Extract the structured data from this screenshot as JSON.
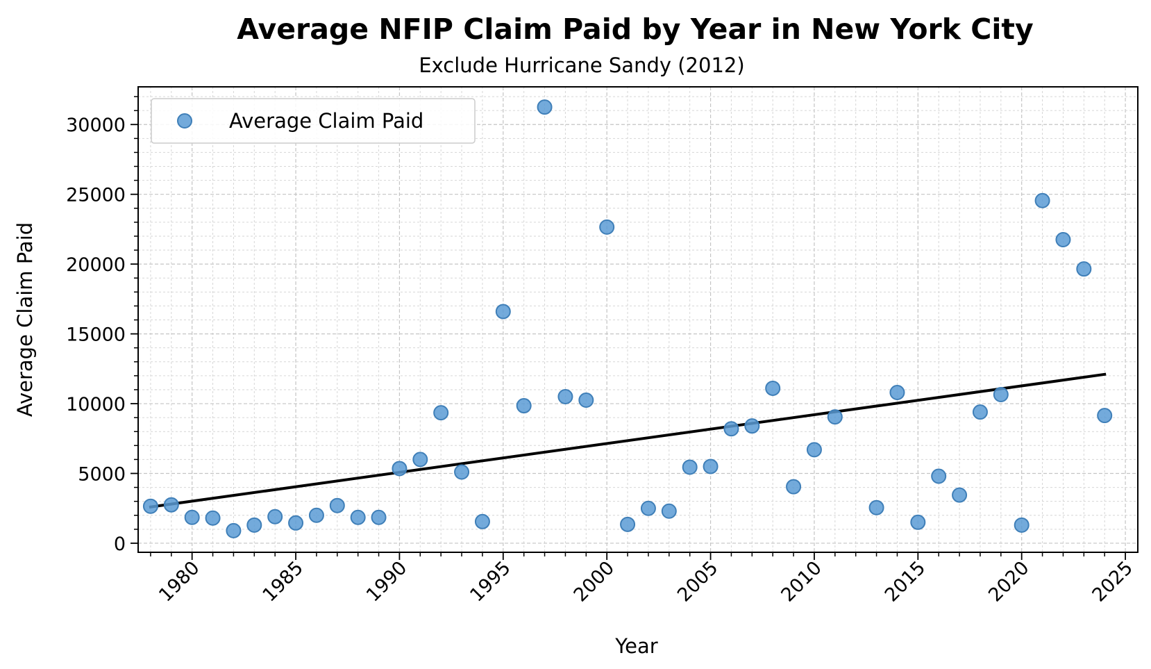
{
  "chart_data": {
    "type": "scatter",
    "title": "Average NFIP Claim Paid by Year in New York City",
    "subtitle": "Exclude Hurricane Sandy (2012)",
    "xlabel": "Year",
    "ylabel": "Average Claim Paid",
    "xlim": [
      1977.4,
      2025.6
    ],
    "ylim": [
      -650,
      32700
    ],
    "x_ticks": [
      1980,
      1985,
      1990,
      1995,
      2000,
      2005,
      2010,
      2015,
      2020,
      2025
    ],
    "x_tick_labels": [
      "1980",
      "1985",
      "1990",
      "1995",
      "2000",
      "2005",
      "2010",
      "2015",
      "2020",
      "2025"
    ],
    "y_ticks": [
      0,
      5000,
      10000,
      15000,
      20000,
      25000,
      30000
    ],
    "y_tick_labels": [
      "0",
      "5000",
      "10000",
      "15000",
      "20000",
      "25000",
      "30000"
    ],
    "grid": true,
    "legend_position": "top-left",
    "series": [
      {
        "name": "Average Claim Paid",
        "type": "scatter",
        "color": "#5b9bd5",
        "x": [
          1978,
          1979,
          1980,
          1981,
          1982,
          1983,
          1984,
          1985,
          1986,
          1987,
          1988,
          1989,
          1990,
          1991,
          1992,
          1993,
          1994,
          1995,
          1996,
          1997,
          1998,
          1999,
          2000,
          2001,
          2002,
          2003,
          2004,
          2005,
          2006,
          2007,
          2008,
          2009,
          2010,
          2011,
          2013,
          2014,
          2015,
          2016,
          2017,
          2018,
          2019,
          2020,
          2021,
          2022,
          2023,
          2024
        ],
        "y": [
          2650,
          2750,
          1850,
          1800,
          900,
          1300,
          1900,
          1450,
          2000,
          2700,
          1850,
          1850,
          5350,
          6000,
          9350,
          5100,
          1550,
          16600,
          9850,
          31250,
          10500,
          10250,
          22650,
          1350,
          2500,
          2300,
          5450,
          5500,
          8200,
          8400,
          11100,
          4050,
          6700,
          9050,
          2550,
          10800,
          1500,
          4800,
          3450,
          9400,
          10650,
          1300,
          24550,
          21750,
          19650,
          9150
        ]
      },
      {
        "name": "trend",
        "type": "line",
        "color": "#000000",
        "x": [
          1978,
          2024
        ],
        "y": [
          2600,
          12100
        ]
      }
    ]
  }
}
